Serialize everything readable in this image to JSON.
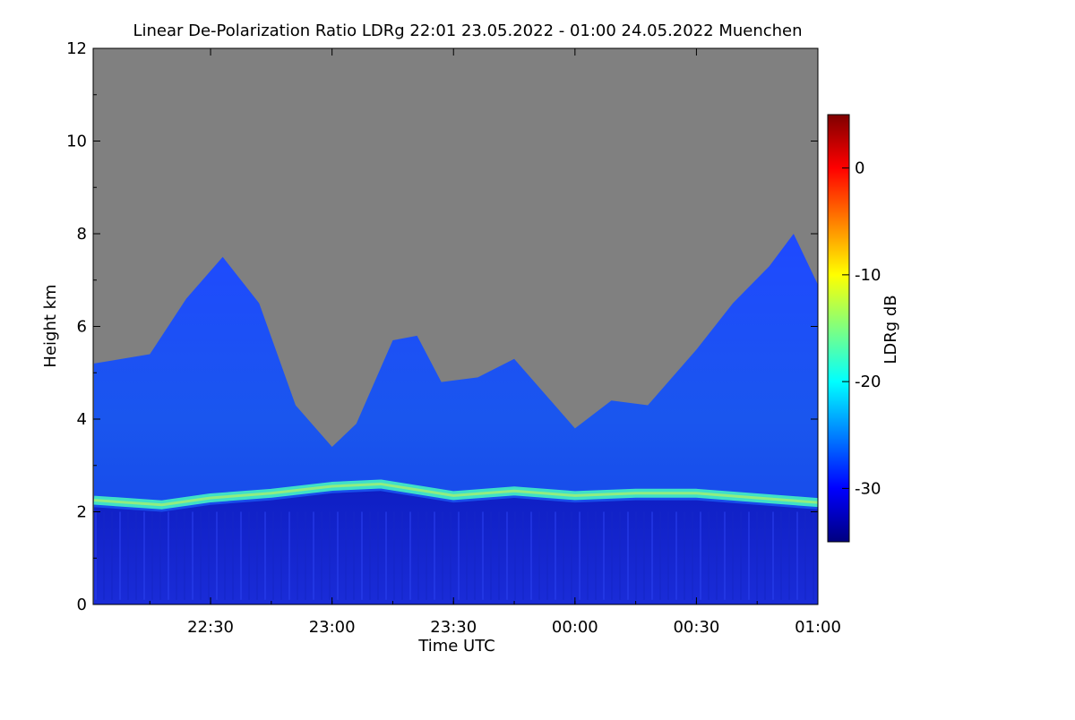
{
  "chart_data": {
    "type": "heatmap",
    "title": "Linear De-Polarization Ratio LDRg   22:01 23.05.2022 - 01:00 24.05.2022 Muenchen",
    "xlabel": "Time UTC",
    "ylabel": "Height km",
    "x_range_hours": [
      22.0167,
      25.0
    ],
    "x_ticks": [
      {
        "label": "22:30",
        "hour": 22.5
      },
      {
        "label": "23:00",
        "hour": 23.0
      },
      {
        "label": "23:30",
        "hour": 23.5
      },
      {
        "label": "00:00",
        "hour": 24.0
      },
      {
        "label": "00:30",
        "hour": 24.5
      },
      {
        "label": "01:00",
        "hour": 25.0
      }
    ],
    "y_range_km": [
      0,
      12
    ],
    "y_ticks": [
      "0",
      "2",
      "4",
      "6",
      "8",
      "10",
      "12"
    ],
    "colorbar": {
      "label": "LDRg dB",
      "range_db": [
        -35,
        5
      ],
      "ticks": [
        "0",
        "-10",
        "-20",
        "-30"
      ],
      "colormap": "jet",
      "no_signal_color": "#808080"
    },
    "features": {
      "melting_layer_height_km": [
        {
          "hour": 22.02,
          "km": 2.25
        },
        {
          "hour": 22.3,
          "km": 2.15
        },
        {
          "hour": 22.5,
          "km": 2.3
        },
        {
          "hour": 22.75,
          "km": 2.4
        },
        {
          "hour": 23.0,
          "km": 2.55
        },
        {
          "hour": 23.2,
          "km": 2.6
        },
        {
          "hour": 23.5,
          "km": 2.35
        },
        {
          "hour": 23.75,
          "km": 2.45
        },
        {
          "hour": 24.0,
          "km": 2.35
        },
        {
          "hour": 24.25,
          "km": 2.4
        },
        {
          "hour": 24.5,
          "km": 2.4
        },
        {
          "hour": 24.75,
          "km": 2.3
        },
        {
          "hour": 25.0,
          "km": 2.2
        }
      ],
      "cloud_top_height_km": [
        {
          "hour": 22.02,
          "km": 5.2
        },
        {
          "hour": 22.25,
          "km": 5.4
        },
        {
          "hour": 22.4,
          "km": 6.6
        },
        {
          "hour": 22.55,
          "km": 7.5
        },
        {
          "hour": 22.7,
          "km": 6.5
        },
        {
          "hour": 22.85,
          "km": 4.3
        },
        {
          "hour": 23.0,
          "km": 3.4
        },
        {
          "hour": 23.1,
          "km": 3.9
        },
        {
          "hour": 23.25,
          "km": 5.7
        },
        {
          "hour": 23.35,
          "km": 5.8
        },
        {
          "hour": 23.45,
          "km": 4.8
        },
        {
          "hour": 23.6,
          "km": 4.9
        },
        {
          "hour": 23.75,
          "km": 5.3
        },
        {
          "hour": 23.9,
          "km": 4.4
        },
        {
          "hour": 24.0,
          "km": 3.8
        },
        {
          "hour": 24.15,
          "km": 4.4
        },
        {
          "hour": 24.3,
          "km": 4.3
        },
        {
          "hour": 24.5,
          "km": 5.5
        },
        {
          "hour": 24.65,
          "km": 6.5
        },
        {
          "hour": 24.8,
          "km": 7.3
        },
        {
          "hour": 24.9,
          "km": 8.0
        },
        {
          "hour": 25.0,
          "km": 6.9
        }
      ]
    }
  }
}
